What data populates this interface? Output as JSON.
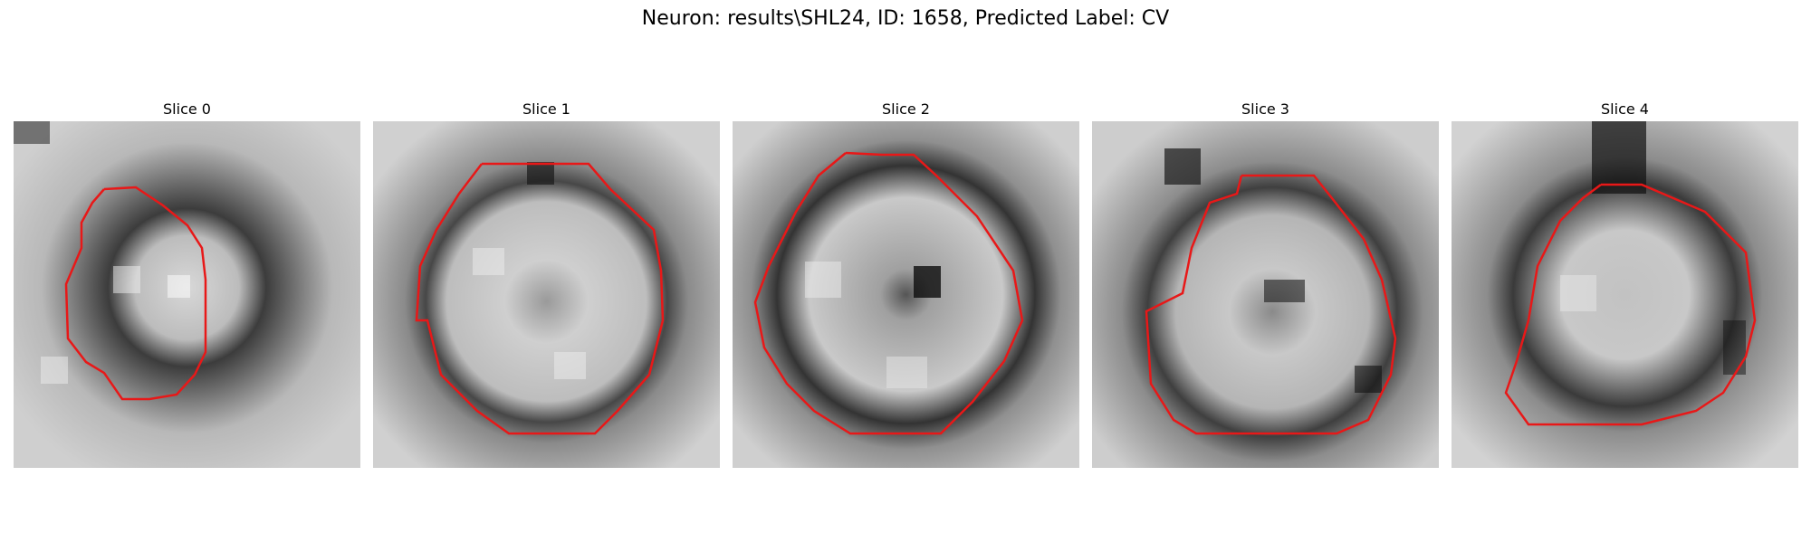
{
  "figure": {
    "title": "Neuron: results\\SHL24, ID: 1658, Predicted Label: CV"
  },
  "panels": [
    {
      "label": "Slice 0",
      "image_description": "grayscale microscopy patch of a small round neuron cross-section",
      "contour_color": "#e81818"
    },
    {
      "label": "Slice 1",
      "image_description": "grayscale microscopy patch of a round neuron cross-section with dark membrane ring",
      "contour_color": "#e81818"
    },
    {
      "label": "Slice 2",
      "image_description": "grayscale microscopy patch of a round neuron cross-section with dark nucleus spot",
      "contour_color": "#e81818"
    },
    {
      "label": "Slice 3",
      "image_description": "grayscale microscopy patch of an irregular neuron cross-section",
      "contour_color": "#e81818"
    },
    {
      "label": "Slice 4",
      "image_description": "grayscale microscopy patch of a round neuron cross-section",
      "contour_color": "#e81818"
    }
  ],
  "colors": {
    "background": "#ffffff",
    "contour": "#e81818"
  }
}
